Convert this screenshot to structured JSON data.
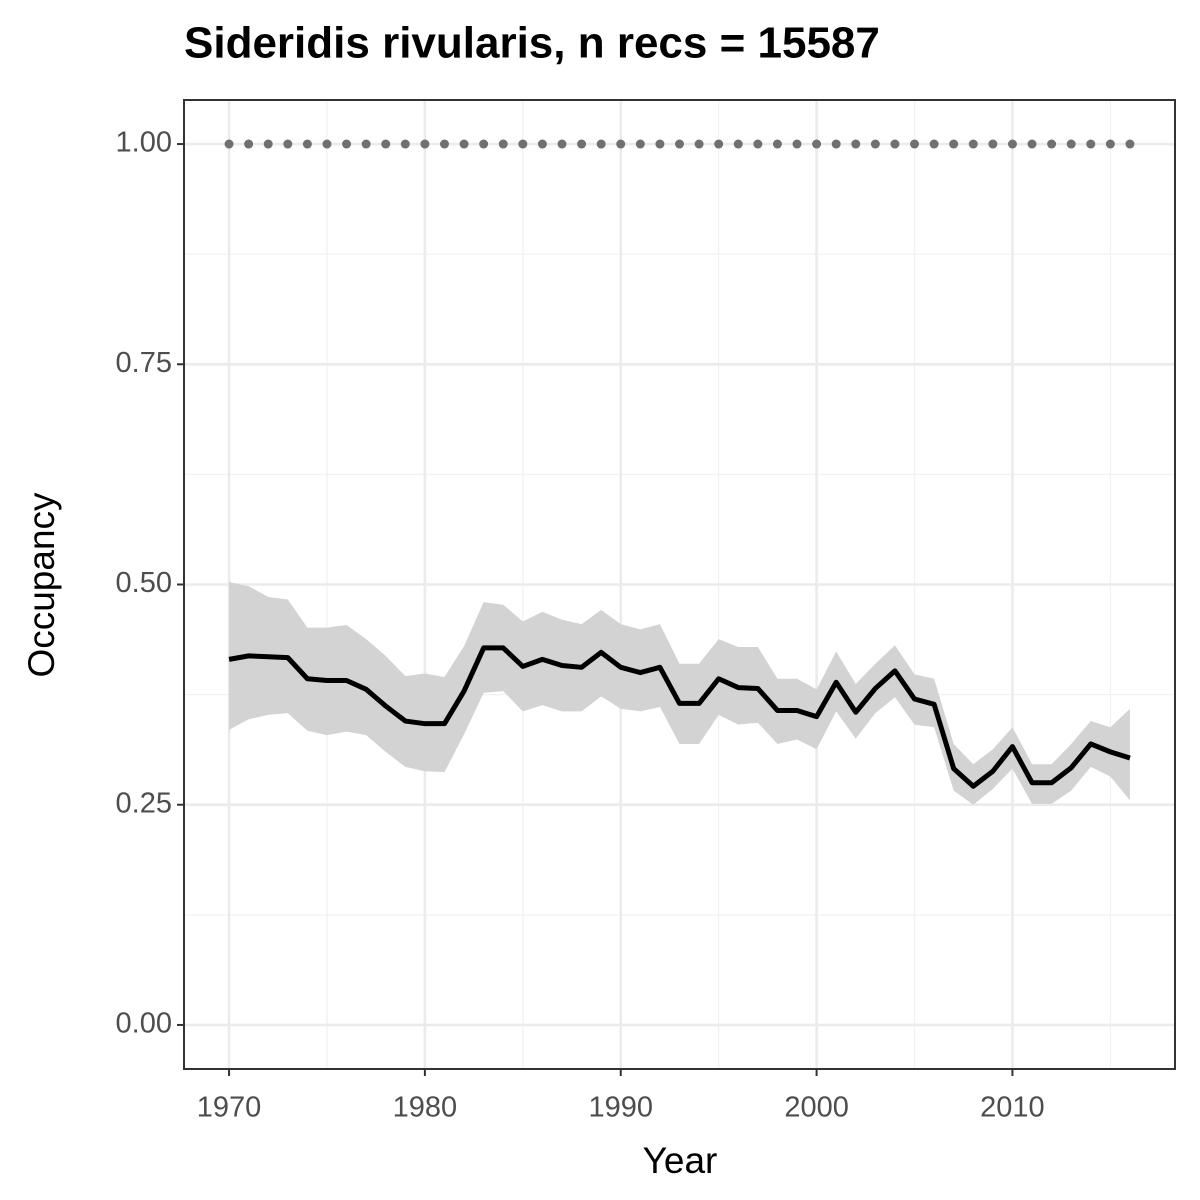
{
  "chart_data": {
    "type": "line",
    "title": "Sideridis rivularis, n recs = 15587",
    "x_label": "Year",
    "y_label": "Occupancy",
    "x": [
      1970,
      1971,
      1972,
      1973,
      1974,
      1975,
      1976,
      1977,
      1978,
      1979,
      1980,
      1981,
      1982,
      1983,
      1984,
      1985,
      1986,
      1987,
      1988,
      1989,
      1990,
      1991,
      1992,
      1993,
      1994,
      1995,
      1996,
      1997,
      1998,
      1999,
      2000,
      2001,
      2002,
      2003,
      2004,
      2005,
      2006,
      2007,
      2008,
      2009,
      2010,
      2011,
      2012,
      2013,
      2014,
      2015,
      2016
    ],
    "series": [
      {
        "color": "#000000",
        "band_color": "#d3d3d3",
        "marker": "line",
        "values": [
          0.415,
          0.419,
          0.418,
          0.417,
          0.393,
          0.391,
          0.391,
          0.381,
          0.362,
          0.345,
          0.342,
          0.342,
          0.379,
          0.428,
          0.428,
          0.407,
          0.415,
          0.408,
          0.406,
          0.423,
          0.406,
          0.4,
          0.406,
          0.365,
          0.365,
          0.393,
          0.383,
          0.382,
          0.357,
          0.357,
          0.35,
          0.389,
          0.355,
          0.382,
          0.402,
          0.37,
          0.364,
          0.291,
          0.271,
          0.288,
          0.316,
          0.275,
          0.275,
          0.292,
          0.319,
          0.31,
          0.303
        ],
        "upper": [
          0.503,
          0.498,
          0.486,
          0.483,
          0.451,
          0.451,
          0.454,
          0.438,
          0.419,
          0.396,
          0.399,
          0.395,
          0.43,
          0.48,
          0.477,
          0.458,
          0.469,
          0.46,
          0.455,
          0.471,
          0.455,
          0.449,
          0.455,
          0.41,
          0.41,
          0.438,
          0.429,
          0.429,
          0.393,
          0.393,
          0.381,
          0.424,
          0.387,
          0.41,
          0.431,
          0.398,
          0.393,
          0.319,
          0.296,
          0.313,
          0.338,
          0.296,
          0.296,
          0.319,
          0.345,
          0.338,
          0.359
        ],
        "lower": [
          0.335,
          0.347,
          0.352,
          0.354,
          0.334,
          0.329,
          0.333,
          0.329,
          0.31,
          0.293,
          0.288,
          0.287,
          0.33,
          0.377,
          0.379,
          0.356,
          0.363,
          0.356,
          0.356,
          0.373,
          0.359,
          0.356,
          0.361,
          0.319,
          0.319,
          0.352,
          0.341,
          0.343,
          0.319,
          0.324,
          0.313,
          0.356,
          0.325,
          0.354,
          0.372,
          0.341,
          0.338,
          0.266,
          0.25,
          0.268,
          0.291,
          0.251,
          0.251,
          0.266,
          0.293,
          0.282,
          0.255
        ]
      },
      {
        "color": "#707070",
        "marker": "dot",
        "values": [
          1,
          1,
          1,
          1,
          1,
          1,
          1,
          1,
          1,
          1,
          1,
          1,
          1,
          1,
          1,
          1,
          1,
          1,
          1,
          1,
          1,
          1,
          1,
          1,
          1,
          1,
          1,
          1,
          1,
          1,
          1,
          1,
          1,
          1,
          1,
          1,
          1,
          1,
          1,
          1,
          1,
          1,
          1,
          1,
          1,
          1,
          1
        ]
      }
    ],
    "xlim": [
      1967.7,
      2018.3
    ],
    "xticks": [
      1970,
      1980,
      1990,
      2000,
      2010
    ],
    "ylim": [
      -0.05,
      1.05
    ],
    "yticks": [
      {
        "value": 0,
        "label": "0.00"
      },
      {
        "value": 0.25,
        "label": "0.25"
      },
      {
        "value": 0.5,
        "label": "0.50"
      },
      {
        "value": 0.75,
        "label": "0.75"
      },
      {
        "value": 1,
        "label": "1.00"
      }
    ],
    "grid": true
  }
}
